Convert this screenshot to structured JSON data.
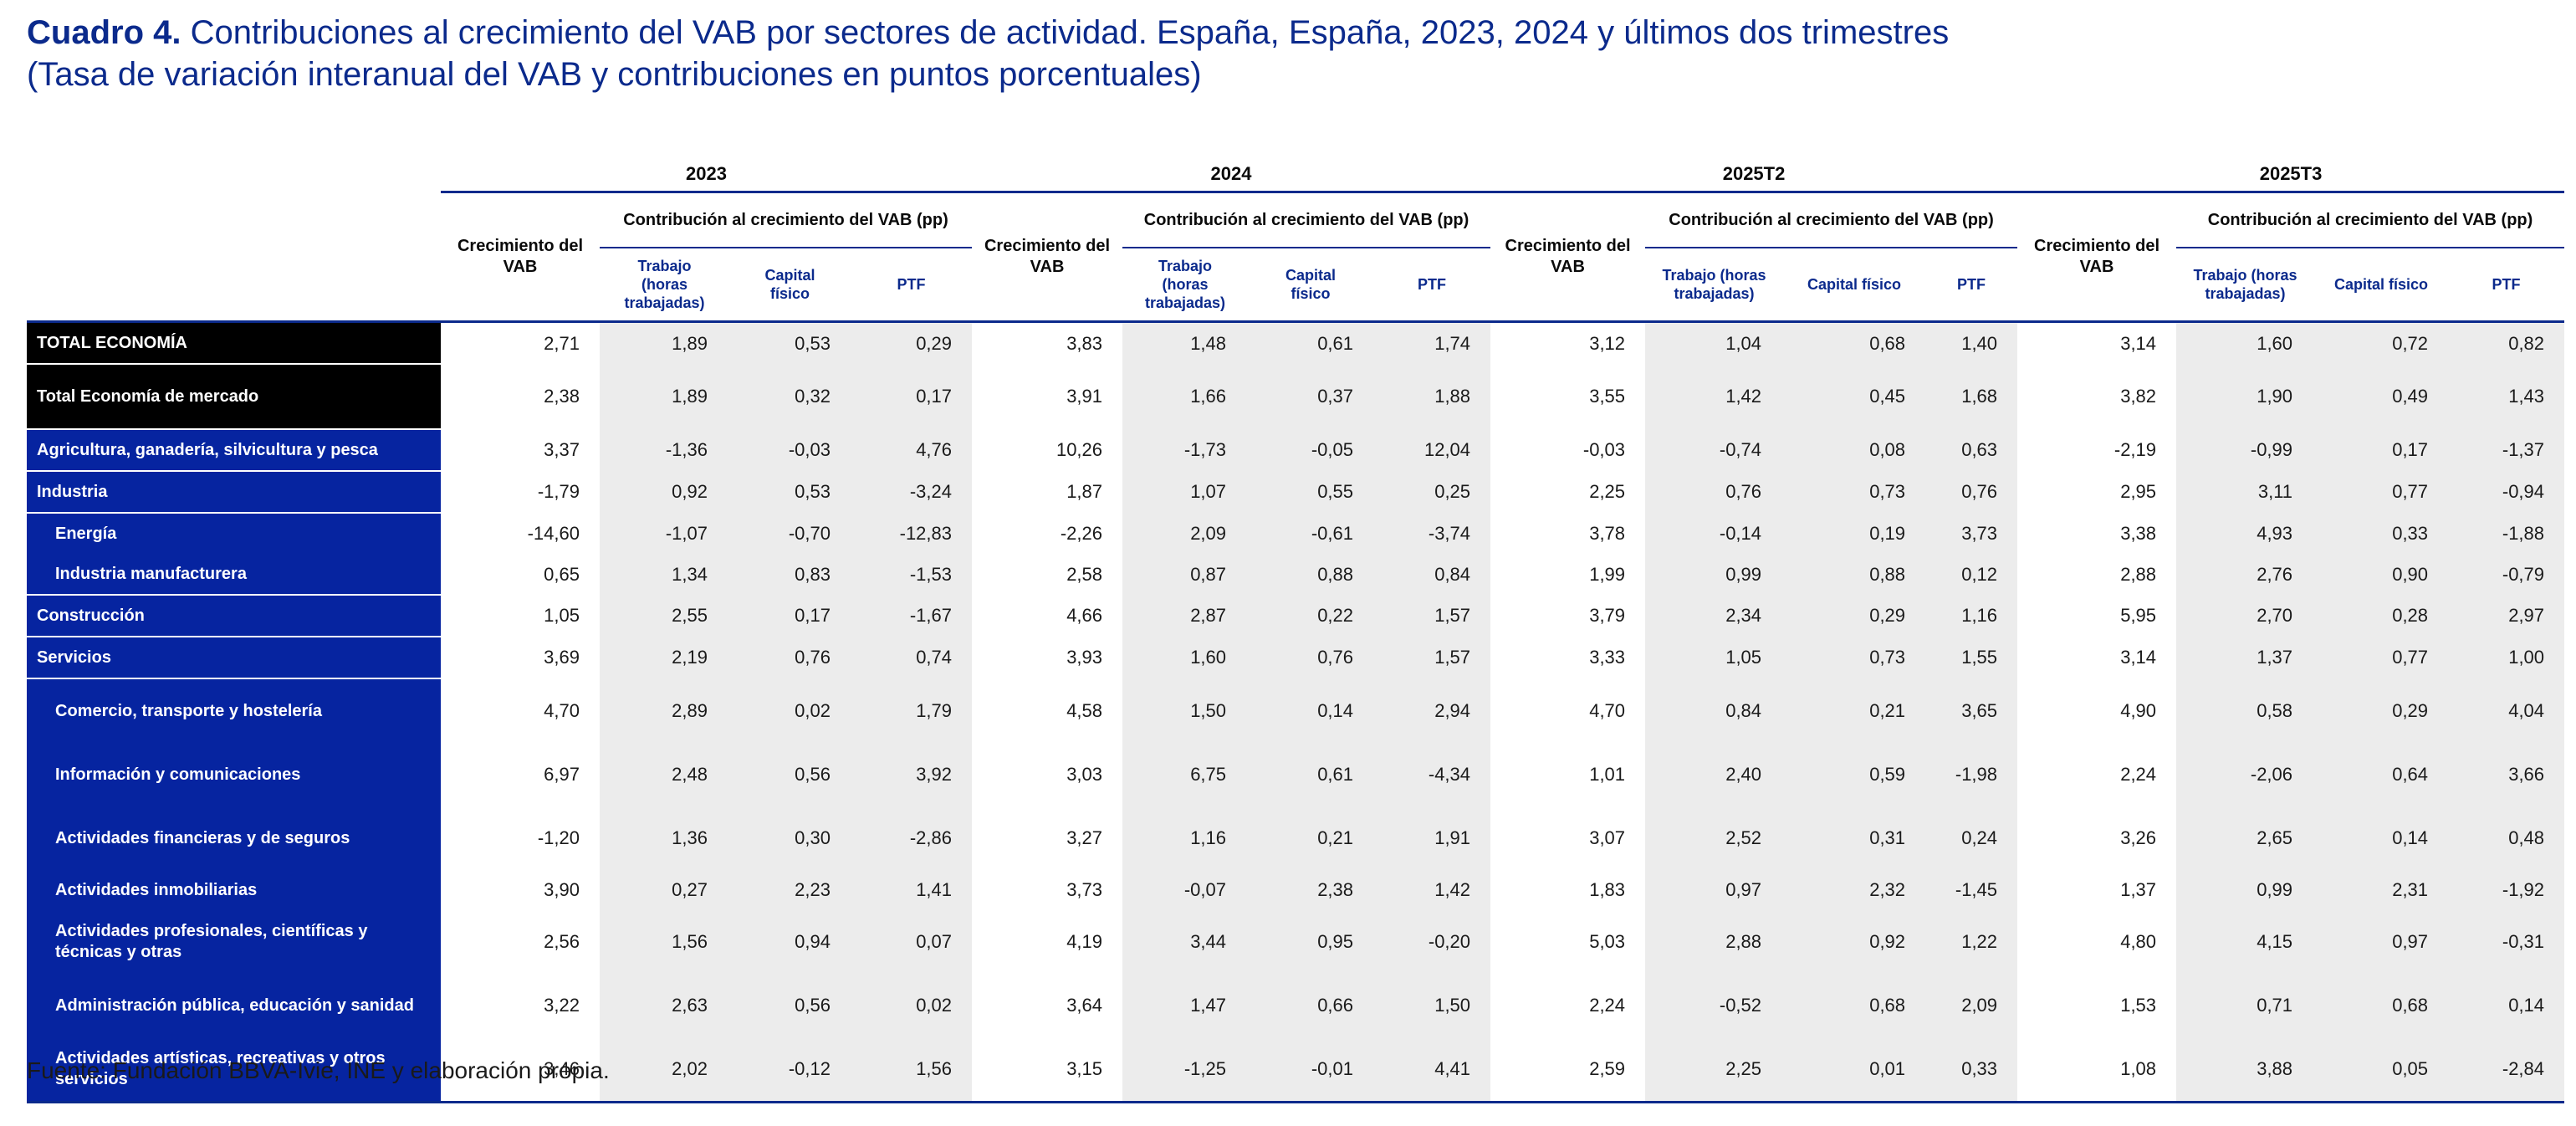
{
  "title": {
    "prefix": "Cuadro 4.",
    "line1": "Contribuciones al crecimiento del VAB por sectores de actividad. España, España, 2023, 2024 y últimos dos trimestres",
    "line2": "(Tasa de variación interanual del VAB y contribuciones en puntos porcentuales)"
  },
  "periods": [
    {
      "label": "2023",
      "growth": "Crecimiento del VAB",
      "contrib": "Contribución al crecimiento del VAB (pp)",
      "c1": "Trabajo (horas trabajadas)",
      "c2": "Capital físico",
      "c3": "PTF"
    },
    {
      "label": "2024",
      "growth": "Crecimiento del VAB",
      "contrib": "Contribución al crecimiento del VAB (pp)",
      "c1": "Trabajo (horas trabajadas)",
      "c2": "Capital físico",
      "c3": "PTF"
    },
    {
      "label": "2025T2",
      "growth": "Crecimiento del VAB",
      "contrib": "Contribución al crecimiento del VAB (pp)",
      "c1": "Trabajo (horas trabajadas)",
      "c2": "Capital físico",
      "c3": "PTF"
    },
    {
      "label": "2025T3",
      "growth": "Crecimiento del VAB",
      "contrib": "Contribución al crecimiento del VAB (pp)",
      "c1": "Trabajo (horas trabajadas)",
      "c2": "Capital físico",
      "c3": "PTF"
    }
  ],
  "rows": [
    {
      "label": "TOTAL ECONOMÍA",
      "v": [
        "2,71",
        "1,89",
        "0,53",
        "0,29",
        "3,83",
        "1,48",
        "0,61",
        "1,74",
        "3,12",
        "1,04",
        "0,68",
        "1,40",
        "3,14",
        "1,60",
        "0,72",
        "0,82"
      ]
    },
    {
      "label": "Total Economía de mercado",
      "v": [
        "2,38",
        "1,89",
        "0,32",
        "0,17",
        "3,91",
        "1,66",
        "0,37",
        "1,88",
        "3,55",
        "1,42",
        "0,45",
        "1,68",
        "3,82",
        "1,90",
        "0,49",
        "1,43"
      ]
    },
    {
      "label": "Agricultura, ganadería, silvicultura y pesca",
      "v": [
        "3,37",
        "-1,36",
        "-0,03",
        "4,76",
        "10,26",
        "-1,73",
        "-0,05",
        "12,04",
        "-0,03",
        "-0,74",
        "0,08",
        "0,63",
        "-2,19",
        "-0,99",
        "0,17",
        "-1,37"
      ]
    },
    {
      "label": "Industria",
      "v": [
        "-1,79",
        "0,92",
        "0,53",
        "-3,24",
        "1,87",
        "1,07",
        "0,55",
        "0,25",
        "2,25",
        "0,76",
        "0,73",
        "0,76",
        "2,95",
        "3,11",
        "0,77",
        "-0,94"
      ]
    },
    {
      "label": "Energía",
      "v": [
        "-14,60",
        "-1,07",
        "-0,70",
        "-12,83",
        "-2,26",
        "2,09",
        "-0,61",
        "-3,74",
        "3,78",
        "-0,14",
        "0,19",
        "3,73",
        "3,38",
        "4,93",
        "0,33",
        "-1,88"
      ]
    },
    {
      "label": "Industria manufacturera",
      "v": [
        "0,65",
        "1,34",
        "0,83",
        "-1,53",
        "2,58",
        "0,87",
        "0,88",
        "0,84",
        "1,99",
        "0,99",
        "0,88",
        "0,12",
        "2,88",
        "2,76",
        "0,90",
        "-0,79"
      ]
    },
    {
      "label": "Construcción",
      "v": [
        "1,05",
        "2,55",
        "0,17",
        "-1,67",
        "4,66",
        "2,87",
        "0,22",
        "1,57",
        "3,79",
        "2,34",
        "0,29",
        "1,16",
        "5,95",
        "2,70",
        "0,28",
        "2,97"
      ]
    },
    {
      "label": "Servicios",
      "v": [
        "3,69",
        "2,19",
        "0,76",
        "0,74",
        "3,93",
        "1,60",
        "0,76",
        "1,57",
        "3,33",
        "1,05",
        "0,73",
        "1,55",
        "3,14",
        "1,37",
        "0,77",
        "1,00"
      ]
    },
    {
      "label": "Comercio, transporte y hostelería",
      "v": [
        "4,70",
        "2,89",
        "0,02",
        "1,79",
        "4,58",
        "1,50",
        "0,14",
        "2,94",
        "4,70",
        "0,84",
        "0,21",
        "3,65",
        "4,90",
        "0,58",
        "0,29",
        "4,04"
      ]
    },
    {
      "label": "Información y comunicaciones",
      "v": [
        "6,97",
        "2,48",
        "0,56",
        "3,92",
        "3,03",
        "6,75",
        "0,61",
        "-4,34",
        "1,01",
        "2,40",
        "0,59",
        "-1,98",
        "2,24",
        "-2,06",
        "0,64",
        "3,66"
      ]
    },
    {
      "label": "Actividades financieras y de seguros",
      "v": [
        "-1,20",
        "1,36",
        "0,30",
        "-2,86",
        "3,27",
        "1,16",
        "0,21",
        "1,91",
        "3,07",
        "2,52",
        "0,31",
        "0,24",
        "3,26",
        "2,65",
        "0,14",
        "0,48"
      ]
    },
    {
      "label": "Actividades inmobiliarias",
      "v": [
        "3,90",
        "0,27",
        "2,23",
        "1,41",
        "3,73",
        "-0,07",
        "2,38",
        "1,42",
        "1,83",
        "0,97",
        "2,32",
        "-1,45",
        "1,37",
        "0,99",
        "2,31",
        "-1,92"
      ]
    },
    {
      "label": "Actividades profesionales, científicas y técnicas y otras",
      "v": [
        "2,56",
        "1,56",
        "0,94",
        "0,07",
        "4,19",
        "3,44",
        "0,95",
        "-0,20",
        "5,03",
        "2,88",
        "0,92",
        "1,22",
        "4,80",
        "4,15",
        "0,97",
        "-0,31"
      ]
    },
    {
      "label": "Administración pública, educación y sanidad",
      "v": [
        "3,22",
        "2,63",
        "0,56",
        "0,02",
        "3,64",
        "1,47",
        "0,66",
        "1,50",
        "2,24",
        "-0,52",
        "0,68",
        "2,09",
        "1,53",
        "0,71",
        "0,68",
        "0,14"
      ]
    },
    {
      "label": "Actividades artísticas, recreativas y otros servicios",
      "v": [
        "3,46",
        "2,02",
        "-0,12",
        "1,56",
        "3,15",
        "-1,25",
        "-0,01",
        "4,41",
        "2,59",
        "2,25",
        "0,01",
        "0,33",
        "1,08",
        "3,88",
        "0,05",
        "-2,84"
      ]
    }
  ],
  "source": "Fuente: Fundación BBVA-Ivie, INE y elaboración propia."
}
